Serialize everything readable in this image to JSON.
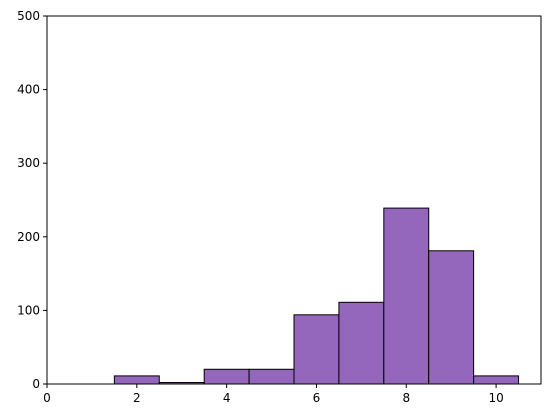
{
  "chart_data": {
    "type": "histogram",
    "bins": [
      0.5,
      1.5,
      2.5,
      3.5,
      4.5,
      5.5,
      6.5,
      7.5,
      8.5,
      9.5,
      10.5
    ],
    "values": [
      0,
      11,
      2,
      20,
      20,
      94,
      111,
      239,
      181,
      11
    ],
    "color": "#9467bd",
    "edgecolor": "#000000",
    "xlim": [
      0,
      11
    ],
    "xticks": [
      0,
      2,
      4,
      6,
      8,
      10
    ],
    "ylim": [
      0,
      500
    ],
    "yticks": [
      0,
      100,
      200,
      300,
      400,
      500
    ]
  }
}
